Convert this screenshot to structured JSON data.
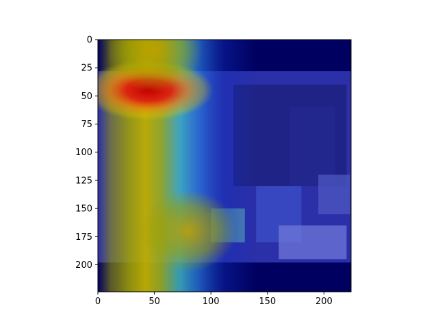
{
  "chart_data": {
    "type": "heatmap",
    "title": "",
    "xlabel": "",
    "ylabel": "",
    "xlim": [
      0,
      224
    ],
    "ylim": [
      224,
      0
    ],
    "x_ticks": [
      0,
      50,
      100,
      150,
      200
    ],
    "y_ticks": [
      0,
      25,
      50,
      75,
      100,
      125,
      150,
      175,
      200
    ],
    "x_tick_labels": [
      "0",
      "50",
      "100",
      "150",
      "200"
    ],
    "y_tick_labels": [
      "0",
      "25",
      "50",
      "75",
      "100",
      "125",
      "150",
      "175",
      "200"
    ],
    "grid": false,
    "colormap": "jet",
    "overlay": "attention heatmap blended over photo",
    "photo_region": {
      "y_start": 28,
      "y_end": 198
    },
    "hot_spots": [
      {
        "x": 45,
        "y": 45,
        "intensity": 1.0
      },
      {
        "x": 80,
        "y": 170,
        "intensity": 0.62
      },
      {
        "x": 50,
        "y": 10,
        "intensity": 0.62
      }
    ],
    "colors": {
      "background_low": "#000060",
      "photo_tint": "#2b2fa8",
      "band_cyan": "#40c0c8",
      "band_olive": "#a0a000",
      "hot": "#cc1a10"
    }
  }
}
